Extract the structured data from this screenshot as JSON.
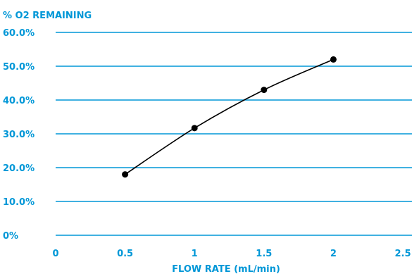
{
  "chart_data": {
    "type": "line",
    "title": "% O2 REMAINING",
    "xlabel": "FLOW RATE (mL/min)",
    "ylabel": "",
    "x_ticks": [
      "0",
      "0.5",
      "1",
      "1.5",
      "2",
      "2.5"
    ],
    "x_tick_values": [
      0,
      0.5,
      1,
      1.5,
      2,
      2.5
    ],
    "y_ticks": [
      "0%",
      "10.0%",
      "20.0%",
      "30.0%",
      "40.0%",
      "50.0%",
      "60.0%"
    ],
    "y_tick_values": [
      0,
      10,
      20,
      30,
      40,
      50,
      60
    ],
    "xlim": [
      0,
      2.5
    ],
    "ylim": [
      0,
      60
    ],
    "grid": "horizontal",
    "legend": "none",
    "series": [
      {
        "x": [
          0.5,
          1.0,
          1.5,
          2.0
        ],
        "y": [
          18.0,
          31.7,
          43.0,
          52.0
        ],
        "smooth": true
      }
    ],
    "colors": {
      "axis_text": "#0097D7",
      "grid": "#0097D7",
      "series": "#000000"
    }
  }
}
